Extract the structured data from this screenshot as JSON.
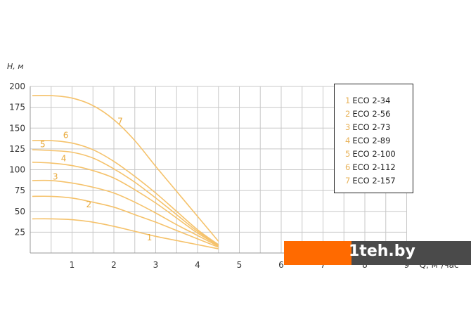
{
  "chart_data": {
    "type": "line",
    "title": "",
    "xlabel": "Q, м³/час",
    "ylabel": "H, м",
    "xlim": [
      0,
      9
    ],
    "ylim": [
      0,
      200
    ],
    "xticks": [
      1,
      2,
      3,
      4,
      5,
      6,
      7,
      8,
      9
    ],
    "yticks": [
      25,
      50,
      75,
      100,
      125,
      150,
      175,
      200
    ],
    "grid": true,
    "legend_placement": "top-right",
    "line_color": "#f5c26b",
    "label_color": "#e8a93a",
    "x": [
      0,
      0.5,
      1,
      1.5,
      2,
      2.5,
      3,
      3.5,
      4,
      4.5
    ],
    "series": [
      {
        "name": "ECO 2-34",
        "label": "1",
        "values": [
          41,
          41,
          40,
          37,
          32,
          26,
          20,
          15,
          10,
          5
        ]
      },
      {
        "name": "ECO 2-56",
        "label": "2",
        "values": [
          68,
          68,
          66,
          61,
          55,
          46,
          37,
          27,
          17,
          7
        ]
      },
      {
        "name": "ECO 2-73",
        "label": "3",
        "values": [
          87,
          87,
          84,
          79,
          72,
          61,
          48,
          34,
          21,
          8
        ]
      },
      {
        "name": "ECO 2-89",
        "label": "4",
        "values": [
          109,
          108,
          105,
          99,
          90,
          76,
          60,
          42,
          24,
          9
        ]
      },
      {
        "name": "ECO 2-100",
        "label": "5",
        "values": [
          124,
          123,
          121,
          114,
          101,
          85,
          66,
          46,
          26,
          10
        ]
      },
      {
        "name": "ECO 2-112",
        "label": "6",
        "values": [
          135,
          135,
          132,
          124,
          110,
          92,
          72,
          50,
          28,
          10
        ]
      },
      {
        "name": "ECO 2-157",
        "label": "7",
        "values": [
          189,
          189,
          186,
          177,
          160,
          135,
          104,
          74,
          44,
          14
        ]
      }
    ],
    "curve_labels": [
      {
        "text": "1",
        "x": 2.85,
        "y": 15
      },
      {
        "text": "2",
        "x": 1.4,
        "y": 55
      },
      {
        "text": "3",
        "x": 0.6,
        "y": 88
      },
      {
        "text": "4",
        "x": 0.8,
        "y": 110
      },
      {
        "text": "5",
        "x": 0.3,
        "y": 127
      },
      {
        "text": "6",
        "x": 0.85,
        "y": 138
      },
      {
        "text": "7",
        "x": 2.15,
        "y": 155
      }
    ]
  },
  "watermark": "1teh.by"
}
